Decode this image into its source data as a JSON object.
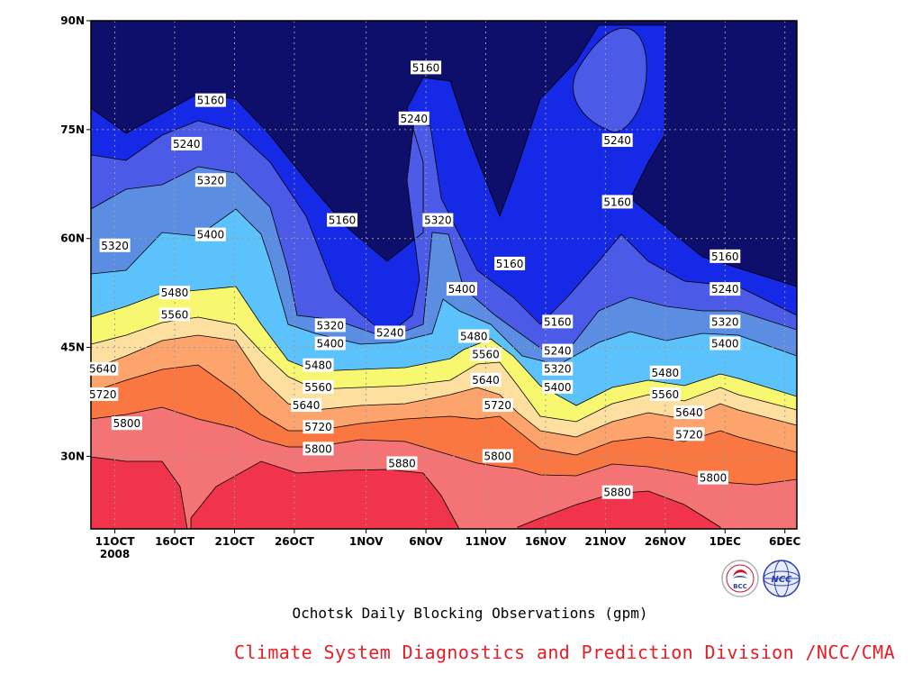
{
  "chart_data": {
    "type": "heatmap",
    "title": "Ochotsk Daily Blocking Observations (gpm)",
    "y_ticks": [
      "30N",
      "45N",
      "60N",
      "75N",
      "90N"
    ],
    "y_tick_values": [
      30,
      45,
      60,
      75,
      90
    ],
    "ylim": [
      20,
      90
    ],
    "x_ticks": [
      "11OCT",
      "16OCT",
      "21OCT",
      "26OCT",
      "1NOV",
      "6NOV",
      "11NOV",
      "16NOV",
      "21NOV",
      "26NOV",
      "1DEC",
      "6DEC"
    ],
    "x_tick_values": [
      "2008-10-11",
      "2008-10-16",
      "2008-10-21",
      "2008-10-26",
      "2008-11-01",
      "2008-11-06",
      "2008-11-11",
      "2008-11-16",
      "2008-11-21",
      "2008-11-26",
      "2008-12-01",
      "2008-12-06"
    ],
    "x_subtitle": "2008",
    "xlim": [
      "2008-10-09",
      "2008-12-07"
    ],
    "grid": true,
    "contour_levels": [
      5160,
      5240,
      5320,
      5400,
      5480,
      5560,
      5640,
      5720,
      5800,
      5880
    ],
    "fill_colors": [
      "#0d0f6b",
      "#1629e6",
      "#4b5be8",
      "#5b8ee3",
      "#5cc2fb",
      "#f8f870",
      "#fde0a0",
      "#fda36c",
      "#fb7742",
      "#f47476",
      "#f0344b"
    ],
    "contour_labels": [
      {
        "value": "5160",
        "date": "2008-10-19",
        "lat": 79
      },
      {
        "value": "5240",
        "date": "2008-10-17",
        "lat": 73
      },
      {
        "value": "5320",
        "date": "2008-10-19",
        "lat": 68
      },
      {
        "value": "5320",
        "date": "2008-10-11",
        "lat": 59
      },
      {
        "value": "5400",
        "date": "2008-10-19",
        "lat": 60.5
      },
      {
        "value": "5480",
        "date": "2008-10-16",
        "lat": 52.5
      },
      {
        "value": "5560",
        "date": "2008-10-16",
        "lat": 49.5
      },
      {
        "value": "5640",
        "date": "2008-10-10",
        "lat": 42
      },
      {
        "value": "5720",
        "date": "2008-10-10",
        "lat": 38.5
      },
      {
        "value": "5800",
        "date": "2008-10-12",
        "lat": 34.5
      },
      {
        "value": "5160",
        "date": "2008-10-30",
        "lat": 62.5
      },
      {
        "value": "5320",
        "date": "2008-10-29",
        "lat": 48
      },
      {
        "value": "5400",
        "date": "2008-10-29",
        "lat": 45.5
      },
      {
        "value": "5480",
        "date": "2008-10-28",
        "lat": 42.5
      },
      {
        "value": "5560",
        "date": "2008-10-28",
        "lat": 39.5
      },
      {
        "value": "5640",
        "date": "2008-10-27",
        "lat": 37
      },
      {
        "value": "5720",
        "date": "2008-10-28",
        "lat": 34
      },
      {
        "value": "5800",
        "date": "2008-10-28",
        "lat": 31
      },
      {
        "value": "5160",
        "date": "2008-11-06",
        "lat": 83.5
      },
      {
        "value": "5240",
        "date": "2008-11-05",
        "lat": 76.5
      },
      {
        "value": "5240",
        "date": "2008-11-03",
        "lat": 47
      },
      {
        "value": "5320",
        "date": "2008-11-07",
        "lat": 62.5
      },
      {
        "value": "5400",
        "date": "2008-11-09",
        "lat": 53
      },
      {
        "value": "5160",
        "date": "2008-11-13",
        "lat": 56.5
      },
      {
        "value": "5480",
        "date": "2008-11-10",
        "lat": 46.5
      },
      {
        "value": "5560",
        "date": "2008-11-11",
        "lat": 44
      },
      {
        "value": "5640",
        "date": "2008-11-11",
        "lat": 40.5
      },
      {
        "value": "5720",
        "date": "2008-11-12",
        "lat": 37
      },
      {
        "value": "5800",
        "date": "2008-11-12",
        "lat": 30
      },
      {
        "value": "5880",
        "date": "2008-11-04",
        "lat": 29
      },
      {
        "value": "5160",
        "date": "2008-11-17",
        "lat": 48.5
      },
      {
        "value": "5240",
        "date": "2008-11-17",
        "lat": 44.5
      },
      {
        "value": "5320",
        "date": "2008-11-17",
        "lat": 42
      },
      {
        "value": "5400",
        "date": "2008-11-17",
        "lat": 39.5
      },
      {
        "value": "5240",
        "date": "2008-11-22",
        "lat": 73.5
      },
      {
        "value": "5160",
        "date": "2008-11-22",
        "lat": 65
      },
      {
        "value": "5880",
        "date": "2008-11-22",
        "lat": 25
      },
      {
        "value": "5480",
        "date": "2008-11-26",
        "lat": 41.5
      },
      {
        "value": "5560",
        "date": "2008-11-26",
        "lat": 38.5
      },
      {
        "value": "5640",
        "date": "2008-11-28",
        "lat": 36
      },
      {
        "value": "5720",
        "date": "2008-11-28",
        "lat": 33
      },
      {
        "value": "5800",
        "date": "2008-11-30",
        "lat": 27
      },
      {
        "value": "5160",
        "date": "2008-12-01",
        "lat": 57.5
      },
      {
        "value": "5240",
        "date": "2008-12-01",
        "lat": 53
      },
      {
        "value": "5320",
        "date": "2008-12-01",
        "lat": 48.5
      },
      {
        "value": "5400",
        "date": "2008-12-01",
        "lat": 45.5
      }
    ]
  },
  "caption": "Ochotsk Daily Blocking Observations (gpm)",
  "credit": "Climate System Diagnostics and Prediction Division /NCC/CMA",
  "logos": [
    {
      "name": "bcc-logo",
      "text": "BCC",
      "color": "#c8102e"
    },
    {
      "name": "ncc-logo",
      "text": "NCC",
      "color": "#2a3fa8"
    }
  ]
}
